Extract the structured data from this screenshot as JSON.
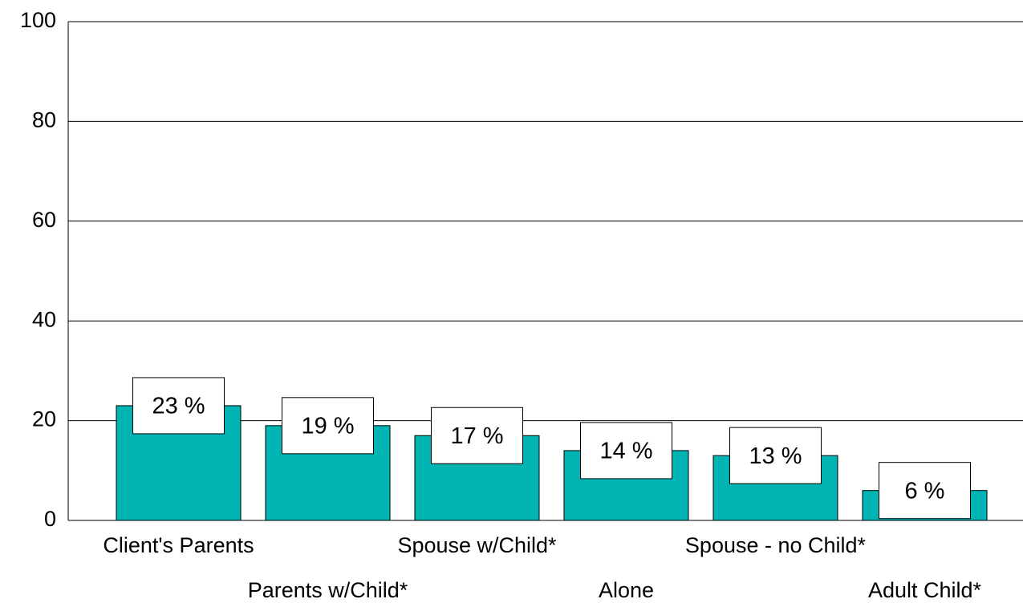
{
  "chart_data": {
    "type": "bar",
    "categories": [
      "Client's Parents",
      "Parents w/Child*",
      "Spouse w/Child*",
      "Alone",
      "Spouse - no Child*",
      "Adult Child*"
    ],
    "values": [
      23,
      19,
      17,
      14,
      13,
      6
    ],
    "value_labels": [
      "23 %",
      "19 %",
      "17 %",
      "14 %",
      "13 %",
      "6 %"
    ],
    "color": "#00b4b4",
    "ylim": [
      0,
      100
    ],
    "yticks": [
      0,
      20,
      40,
      60,
      80,
      100
    ],
    "grid": true
  }
}
